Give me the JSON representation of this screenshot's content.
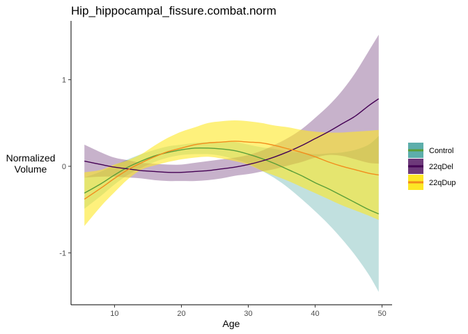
{
  "chart_data": {
    "type": "line",
    "title": "Hip_hippocampal_fissure.combat.norm",
    "xlabel": "Age",
    "ylabel_lines": [
      "Normalized",
      "Volume"
    ],
    "xlim": [
      3.5,
      51.5
    ],
    "ylim": [
      -1.6,
      1.68
    ],
    "xticks": [
      10,
      20,
      30,
      40,
      50
    ],
    "xtick_labels": [
      "10",
      "20",
      "30",
      "40",
      "50"
    ],
    "yticks": [
      -1,
      0,
      1
    ],
    "ytick_labels": [
      "-1",
      "0",
      "1"
    ],
    "grid": false,
    "legend_position": "right",
    "x": [
      5.5,
      8,
      10,
      12,
      14,
      16,
      18,
      20,
      22,
      24,
      26,
      28,
      30,
      32,
      34,
      36,
      38,
      40,
      42,
      44,
      46,
      48,
      49.5
    ],
    "series": [
      {
        "name": "Control",
        "line_color": "#5a9e38",
        "band_color": "#21908C",
        "band_opacity": 0.28,
        "y": [
          -0.31,
          -0.2,
          -0.1,
          -0.01,
          0.06,
          0.12,
          0.16,
          0.19,
          0.21,
          0.21,
          0.2,
          0.18,
          0.14,
          0.09,
          0.03,
          -0.04,
          -0.11,
          -0.19,
          -0.26,
          -0.34,
          -0.42,
          -0.5,
          -0.55
        ],
        "lower": [
          -0.49,
          -0.34,
          -0.21,
          -0.1,
          -0.02,
          0.05,
          0.1,
          0.13,
          0.14,
          0.14,
          0.12,
          0.08,
          0.03,
          -0.05,
          -0.14,
          -0.25,
          -0.38,
          -0.52,
          -0.67,
          -0.84,
          -1.03,
          -1.25,
          -1.45
        ],
        "upper": [
          -0.13,
          -0.06,
          0.01,
          0.08,
          0.14,
          0.19,
          0.23,
          0.25,
          0.27,
          0.28,
          0.28,
          0.28,
          0.25,
          0.22,
          0.2,
          0.17,
          0.16,
          0.14,
          0.15,
          0.16,
          0.19,
          0.25,
          0.35
        ]
      },
      {
        "name": "22qDel",
        "line_color": "#440154",
        "band_color": "#440154",
        "band_opacity": 0.3,
        "y": [
          0.06,
          0.02,
          -0.01,
          -0.03,
          -0.05,
          -0.06,
          -0.07,
          -0.07,
          -0.06,
          -0.05,
          -0.03,
          -0.01,
          0.02,
          0.06,
          0.11,
          0.17,
          0.24,
          0.32,
          0.4,
          0.49,
          0.58,
          0.7,
          0.78
        ],
        "lower": [
          -0.13,
          -0.12,
          -0.12,
          -0.13,
          -0.14,
          -0.16,
          -0.17,
          -0.17,
          -0.17,
          -0.16,
          -0.14,
          -0.11,
          -0.09,
          -0.06,
          -0.03,
          0.01,
          0.05,
          0.1,
          0.13,
          0.12,
          0.08,
          0.04,
          0.03
        ],
        "upper": [
          0.25,
          0.16,
          0.1,
          0.07,
          0.04,
          0.03,
          0.02,
          0.02,
          0.04,
          0.06,
          0.08,
          0.1,
          0.13,
          0.18,
          0.25,
          0.33,
          0.43,
          0.56,
          0.7,
          0.87,
          1.08,
          1.33,
          1.52
        ]
      },
      {
        "name": "22qDup",
        "line_color": "#f28c1c",
        "band_color": "#FDE725",
        "band_opacity": 0.6,
        "y": [
          -0.38,
          -0.25,
          -0.14,
          -0.04,
          0.04,
          0.11,
          0.17,
          0.21,
          0.25,
          0.27,
          0.28,
          0.29,
          0.28,
          0.27,
          0.24,
          0.2,
          0.16,
          0.11,
          0.05,
          0.0,
          -0.04,
          -0.08,
          -0.1
        ],
        "lower": [
          -0.69,
          -0.46,
          -0.3,
          -0.15,
          -0.04,
          0.01,
          0.05,
          0.08,
          0.1,
          0.11,
          0.09,
          0.06,
          0.02,
          -0.05,
          -0.11,
          -0.17,
          -0.24,
          -0.31,
          -0.38,
          -0.45,
          -0.51,
          -0.57,
          -0.62
        ],
        "upper": [
          -0.07,
          -0.04,
          0.02,
          0.07,
          0.14,
          0.24,
          0.33,
          0.4,
          0.45,
          0.5,
          0.52,
          0.53,
          0.52,
          0.5,
          0.47,
          0.45,
          0.42,
          0.4,
          0.39,
          0.39,
          0.4,
          0.41,
          0.42
        ]
      }
    ]
  }
}
